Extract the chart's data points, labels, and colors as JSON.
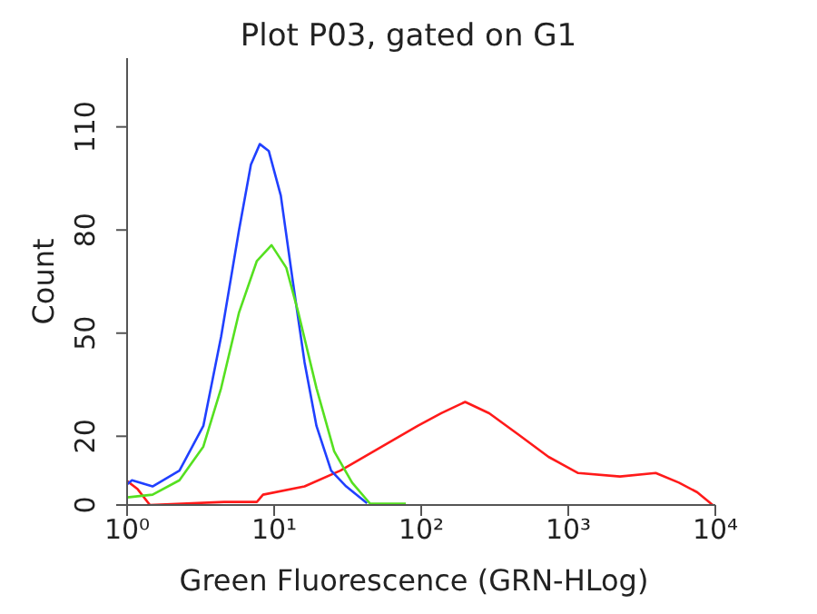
{
  "chart_data": {
    "type": "line",
    "title": "Plot P03, gated on G1",
    "xlabel": "Green Fluorescence (GRN-HLog)",
    "ylabel": "Count",
    "log": "x",
    "xlim": [
      1,
      10000
    ],
    "xticks": [
      {
        "value": 1,
        "label": "10⁰"
      },
      {
        "value": 10,
        "label": "10¹"
      },
      {
        "value": 100,
        "label": "10²"
      },
      {
        "value": 1000,
        "label": "10³"
      },
      {
        "value": 10000,
        "label": "10⁴"
      }
    ],
    "ylim": [
      0,
      130
    ],
    "yticks": [
      0,
      20,
      50,
      80,
      110
    ],
    "grid": false,
    "marker": "none",
    "line_style": "solid",
    "series": [
      {
        "color": "#ff1a1a",
        "x": [
          1,
          1.18,
          1.43,
          4.57,
          7.63,
          8.4,
          16.1,
          28.2,
          54.1,
          94.6,
          137,
          199,
          290,
          461,
          734,
          1167,
          2247,
          3933,
          5655,
          7535,
          9602
        ],
        "values": [
          7,
          4.6,
          0,
          0.9,
          0.9,
          3,
          5.4,
          10,
          17,
          23,
          26.7,
          30,
          26.7,
          20.4,
          14,
          9.3,
          8.3,
          9.3,
          6.5,
          3.7,
          0
        ]
      },
      {
        "color": "#2040ff",
        "x": [
          1,
          1.08,
          1.49,
          2.27,
          3.3,
          4.36,
          5.77,
          6.95,
          7.99,
          9.19,
          11.1,
          13.3,
          16.1,
          19.4,
          24.4,
          30.9,
          42.8
        ],
        "values": [
          6,
          7.2,
          5.4,
          10,
          23,
          49,
          80,
          99,
          105,
          103,
          90,
          66,
          41.5,
          23,
          10,
          5.4,
          0.5
        ]
      },
      {
        "color": "#55e020",
        "x": [
          1,
          1.49,
          2.27,
          3.3,
          4.36,
          5.77,
          7.63,
          9.6,
          12.1,
          14.6,
          19.4,
          25.6,
          33.9,
          44.9,
          78.6
        ],
        "values": [
          2.2,
          3,
          7.2,
          17,
          34,
          56,
          71,
          75.6,
          69,
          56,
          34,
          15.6,
          6.5,
          0.4,
          0.4
        ]
      }
    ]
  }
}
